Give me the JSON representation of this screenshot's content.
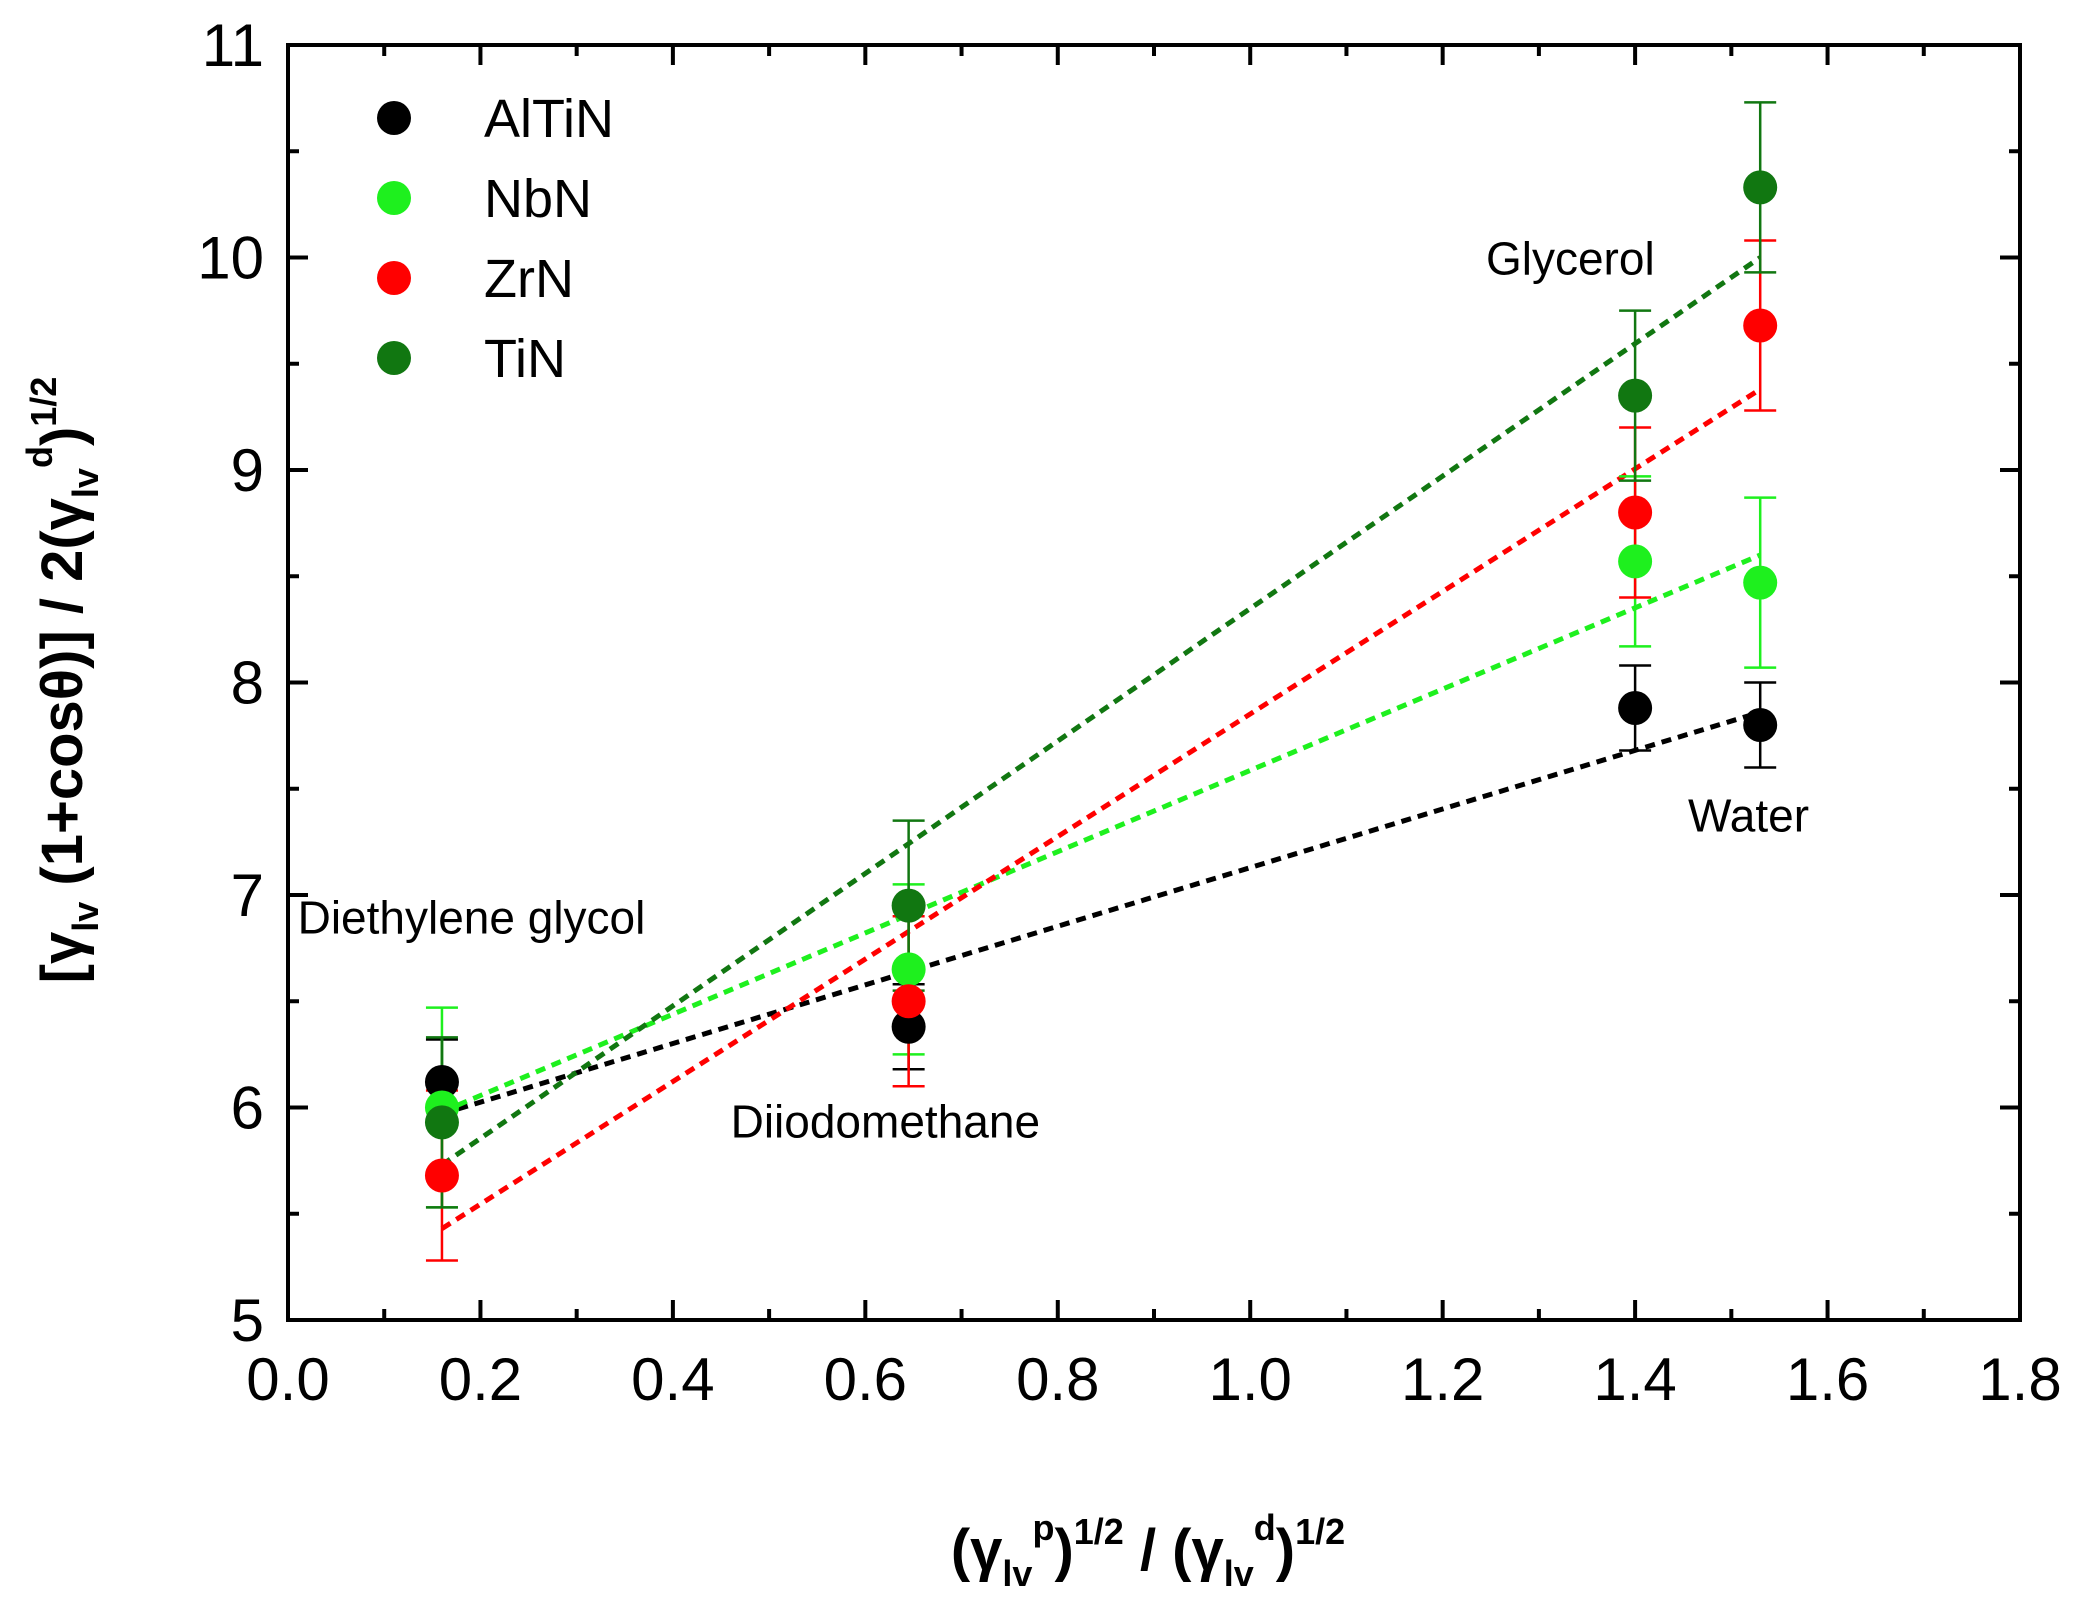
{
  "chart_data": {
    "type": "scatter",
    "xlabel": {
      "pre": "(γ",
      "sub1": "lv",
      "sup1": "p",
      "mid": ")",
      "sup2": "1/2",
      "sep": " / (γ",
      "sub2": "lv",
      "sup3": "d",
      "post": ")",
      "sup4": "1/2"
    },
    "ylabel": {
      "pre": "[γ",
      "sub1": "lv",
      "mid": " (1+cosθ)] / 2(γ",
      "sub2": "lv",
      "sup1": "d",
      "post": ")",
      "sup2": "1/2"
    },
    "xlim": [
      0.0,
      1.8
    ],
    "ylim": [
      5,
      11
    ],
    "xticks": [
      "0.0",
      "0.2",
      "0.4",
      "0.6",
      "0.8",
      "1.0",
      "1.2",
      "1.4",
      "1.6",
      "1.8"
    ],
    "yticks": [
      "5",
      "6",
      "7",
      "8",
      "9",
      "10",
      "11"
    ],
    "x": [
      0.16,
      0.645,
      1.4,
      1.53
    ],
    "series": [
      {
        "name": "AlTiN",
        "color": "#000000",
        "y": [
          6.12,
          6.38,
          7.88,
          7.8
        ],
        "err": [
          0.2,
          0.2,
          0.2,
          0.2
        ],
        "fit": [
          5.97,
          7.86
        ]
      },
      {
        "name": "NbN",
        "color": "#1ef01e",
        "y": [
          6.0,
          6.65,
          8.57,
          8.47
        ],
        "err": [
          0.47,
          0.4,
          0.4,
          0.4
        ],
        "fit": [
          5.98,
          8.6
        ]
      },
      {
        "name": "ZrN",
        "color": "#ff0000",
        "y": [
          5.68,
          6.5,
          8.8,
          9.68
        ],
        "err": [
          0.4,
          0.4,
          0.4,
          0.4
        ],
        "fit": [
          5.43,
          9.38
        ]
      },
      {
        "name": "TiN",
        "color": "#117711",
        "y": [
          5.93,
          6.95,
          9.35,
          10.33
        ],
        "err": [
          0.4,
          0.4,
          0.4,
          0.4
        ],
        "fit": [
          5.73,
          10.0
        ]
      }
    ],
    "annotations": [
      {
        "text": "Diethylene glycol",
        "x": 0.01,
        "y": 6.82
      },
      {
        "text": "Diiodomethane",
        "x": 0.46,
        "y": 5.86
      },
      {
        "text": "Glycerol",
        "x": 1.245,
        "y": 9.92
      },
      {
        "text": "Water",
        "x": 1.455,
        "y": 7.3
      }
    ],
    "legend_position": "top-left"
  }
}
